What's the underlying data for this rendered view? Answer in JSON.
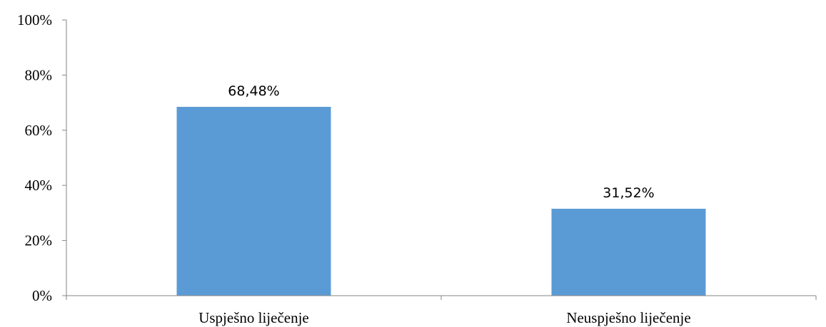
{
  "chart_data": {
    "type": "bar",
    "title": "",
    "xlabel": "",
    "ylabel": "",
    "categories": [
      "Uspješno liječenje",
      "Neuspješno liječenje"
    ],
    "values": [
      68.48,
      31.52
    ],
    "data_labels": [
      "68,48%",
      "31,52%"
    ],
    "ylim": [
      0,
      100
    ],
    "yticks": [
      0,
      20,
      40,
      60,
      80,
      100
    ],
    "ytick_labels": [
      "0%",
      "20%",
      "40%",
      "60%",
      "80%",
      "100%"
    ],
    "bar_color": "#5b9bd5",
    "grid": false,
    "legend": "none"
  }
}
